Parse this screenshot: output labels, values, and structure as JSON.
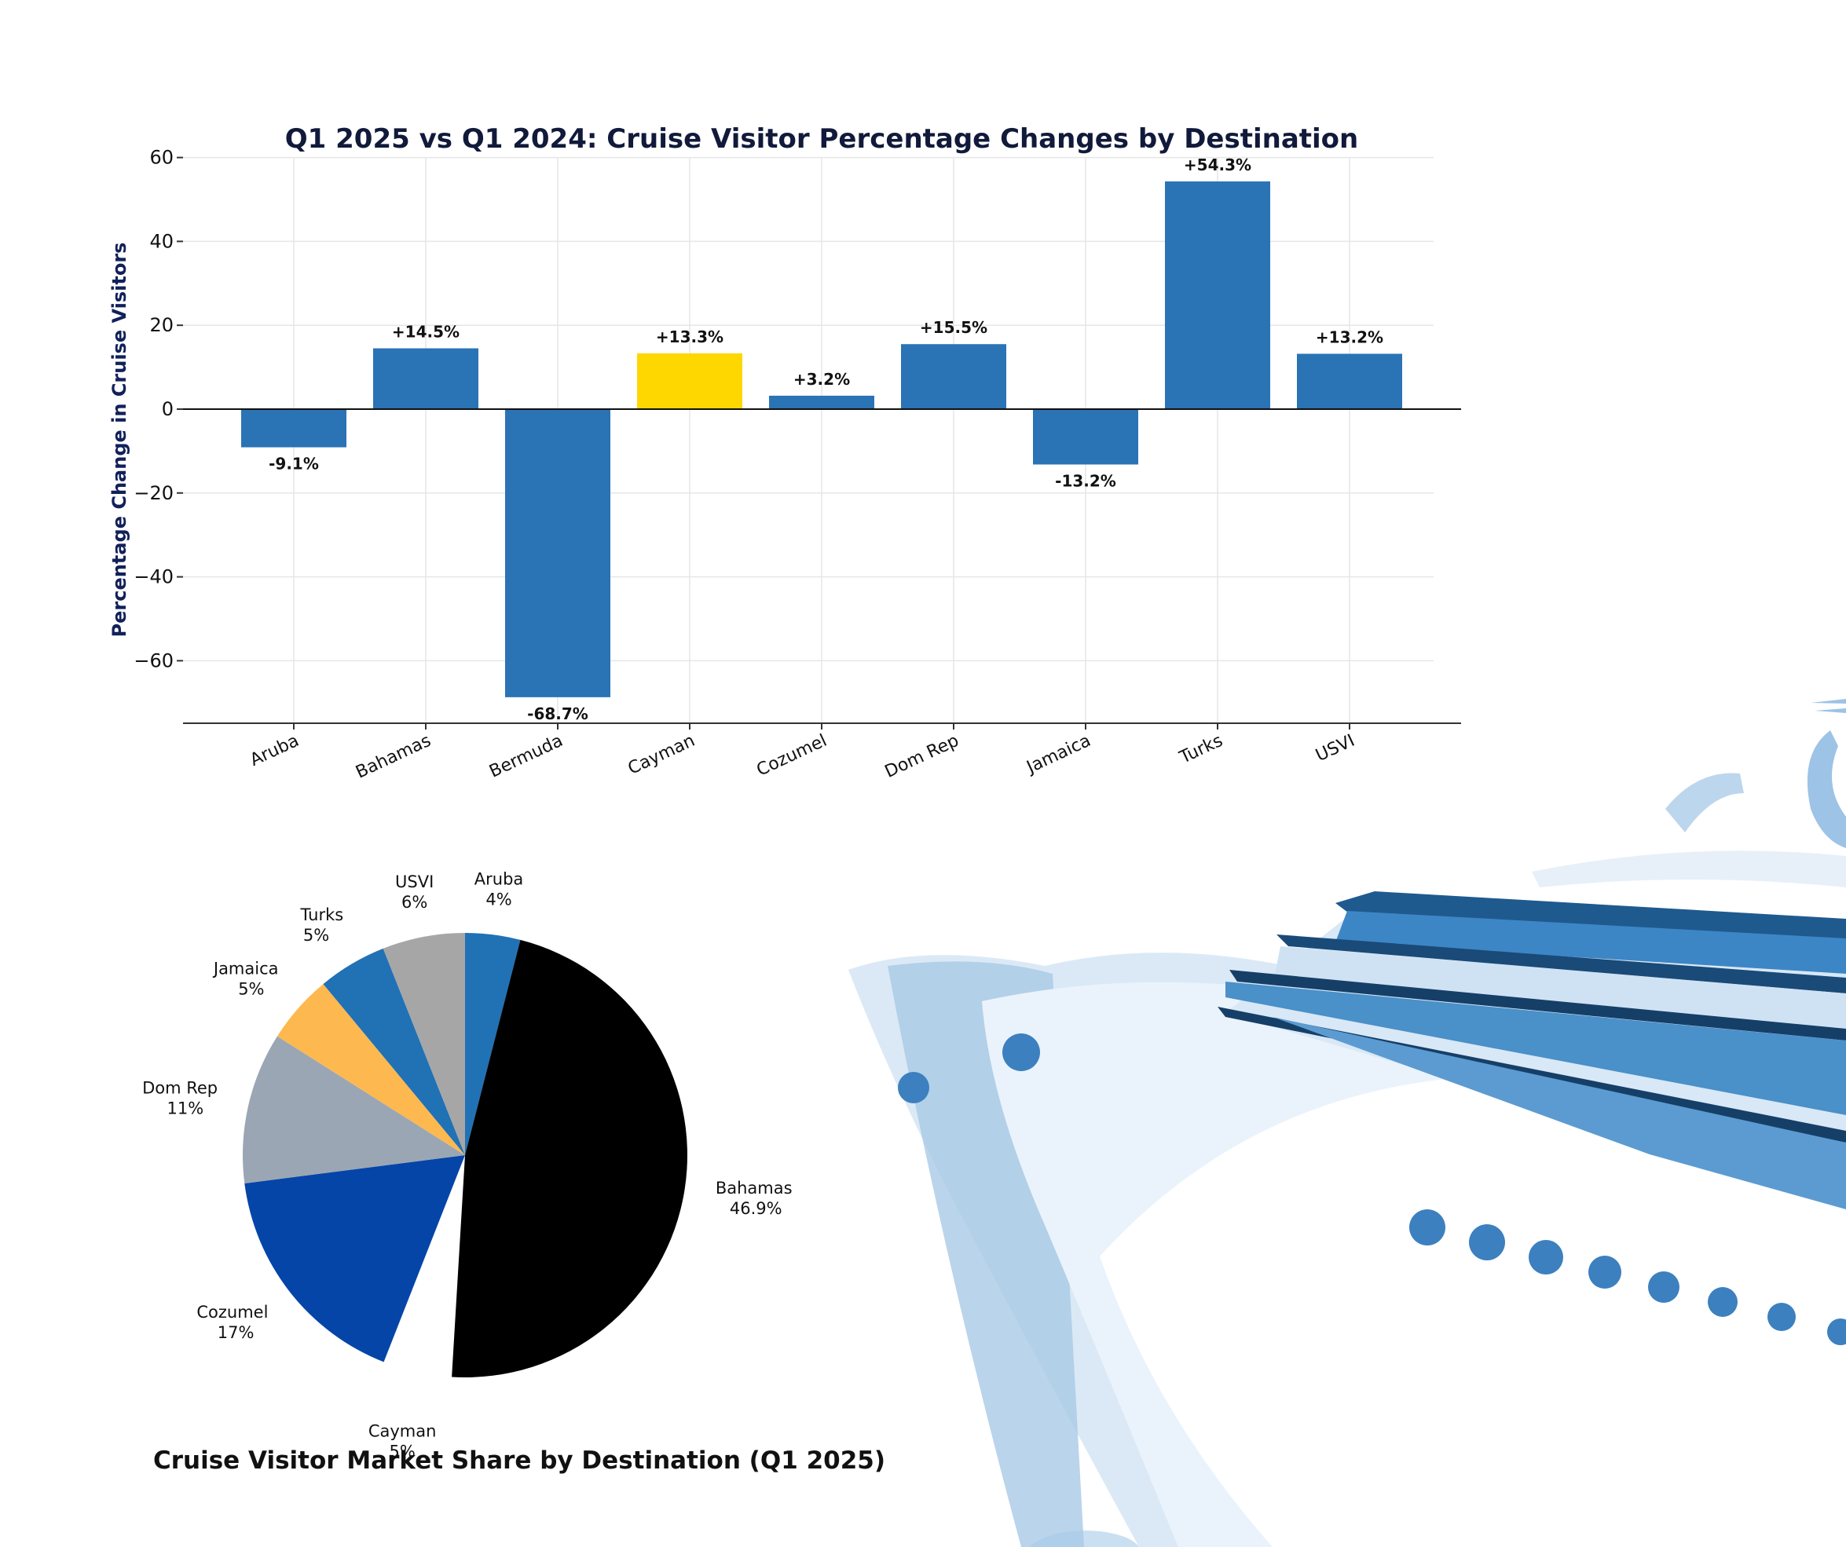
{
  "chart_data": [
    {
      "type": "bar",
      "title": "Q1 2025 vs Q1 2024: Cruise Visitor Percentage Changes by Destination",
      "xlabel": "",
      "ylabel": "Percentage Change in Cruise Visitors",
      "categories": [
        "Aruba",
        "Bahamas",
        "Bermuda",
        "Cayman",
        "Cozumel",
        "Dom Rep",
        "Jamaica",
        "Turks",
        "USVI"
      ],
      "values": [
        -9.1,
        14.5,
        -68.7,
        13.3,
        3.2,
        15.5,
        -13.2,
        54.3,
        13.2
      ],
      "data_labels": [
        "-9.1%",
        "+14.5%",
        "-68.7%",
        "+13.3%",
        "+3.2%",
        "+15.5%",
        "-13.2%",
        "+54.3%",
        "+13.2%"
      ],
      "highlight_category": "Cayman",
      "colors": {
        "bar": "#2a73b5",
        "highlight": "#ffd700"
      },
      "ylim": [
        -75,
        60
      ],
      "yticks": [
        60,
        40,
        20,
        0,
        -20,
        -40,
        -60
      ],
      "ytick_labels": [
        "60",
        "40",
        "20",
        "0",
        "−20",
        "−40",
        "−60"
      ],
      "grid": true
    },
    {
      "type": "pie",
      "title": "Cruise Visitor Market Share by Destination (Q1 2025)",
      "slices": [
        {
          "label": "Aruba",
          "value_label": "4%",
          "value": 4,
          "color": "#2171b5"
        },
        {
          "label": "Bahamas",
          "value_label": "46.9%",
          "value": 46.9,
          "color": "#000000"
        },
        {
          "label": "Cayman",
          "value_label": "5%",
          "value": 5,
          "color": "#ffffff",
          "explode": true
        },
        {
          "label": "Cozumel",
          "value_label": "17%",
          "value": 17,
          "color": "#0545a8"
        },
        {
          "label": "Dom Rep",
          "value_label": "11%",
          "value": 11,
          "color": "#9aa6b4"
        },
        {
          "label": "Jamaica",
          "value_label": "5%",
          "value": 5,
          "color": "#fdb94f"
        },
        {
          "label": "Turks",
          "value_label": "5%",
          "value": 5,
          "color": "#2171b5"
        },
        {
          "label": "USVI",
          "value_label": "6%",
          "value": 6,
          "color": "#a6a6a6"
        }
      ]
    }
  ]
}
